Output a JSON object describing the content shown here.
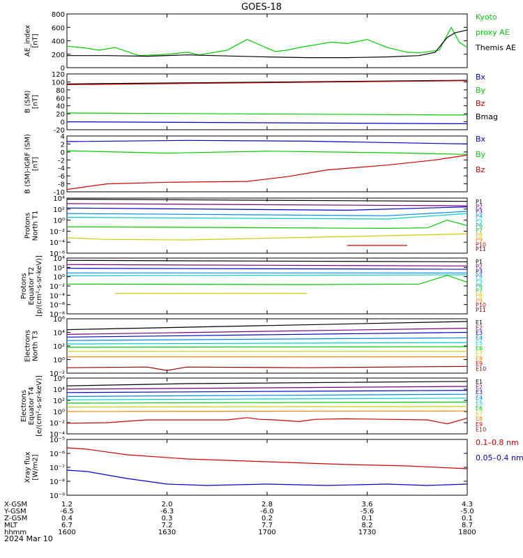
{
  "title": "GOES-18",
  "date_label": "2024 Mar 10",
  "chart_data": [
    {
      "type": "line",
      "panel": "ae",
      "ylabel": [
        "AE_index",
        "[nT]"
      ],
      "ylim": [
        0,
        800
      ],
      "yticks": [
        "800",
        "600",
        "400",
        "200",
        "0"
      ],
      "ytick_values": [
        800,
        600,
        400,
        200,
        0
      ],
      "legend": [
        {
          "text": "Kyoto",
          "color": "#00cc00"
        },
        {
          "text": "proxy AE",
          "color": "#00cc00"
        },
        {
          "text": "Themis AE",
          "color": "#000000"
        }
      ],
      "series": [
        {
          "color": "#00cc00",
          "x": [
            0,
            5,
            8,
            12,
            18,
            22,
            25,
            30,
            33,
            40,
            45,
            52,
            55,
            58,
            62,
            66,
            70,
            75,
            80,
            85,
            88,
            93,
            96,
            98,
            100
          ],
          "values": [
            320,
            290,
            260,
            300,
            180,
            190,
            200,
            230,
            190,
            260,
            420,
            240,
            260,
            300,
            340,
            380,
            360,
            420,
            300,
            230,
            220,
            260,
            600,
            380,
            300
          ]
        },
        {
          "color": "#000000",
          "x": [
            0,
            10,
            20,
            30,
            40,
            50,
            60,
            70,
            80,
            88,
            92,
            95,
            97,
            100
          ],
          "values": [
            180,
            180,
            170,
            190,
            175,
            160,
            150,
            150,
            160,
            180,
            230,
            450,
            520,
            560
          ]
        }
      ]
    },
    {
      "type": "line",
      "panel": "b_sm",
      "ylabel": [
        "B (SM)",
        "[nT]"
      ],
      "ylim": [
        -20,
        120
      ],
      "yticks": [
        "120",
        "100",
        "80",
        "60",
        "40",
        "20",
        "0",
        "-20"
      ],
      "ytick_values": [
        120,
        100,
        80,
        60,
        40,
        20,
        0,
        -20
      ],
      "legend": [
        {
          "text": "Bx",
          "color": "#0000cc"
        },
        {
          "text": "By",
          "color": "#00cc00"
        },
        {
          "text": "Bz",
          "color": "#cc0000"
        },
        {
          "text": "Bmag",
          "color": "#000000"
        }
      ],
      "series": [
        {
          "color": "#000000",
          "x": [
            0,
            100
          ],
          "values": [
            95,
            104
          ]
        },
        {
          "color": "#cc0000",
          "x": [
            0,
            100
          ],
          "values": [
            93,
            103
          ]
        },
        {
          "color": "#00cc00",
          "x": [
            0,
            100
          ],
          "values": [
            22,
            17
          ]
        },
        {
          "color": "#0000cc",
          "x": [
            0,
            100
          ],
          "values": [
            0,
            -5
          ]
        }
      ]
    },
    {
      "type": "line",
      "panel": "b_igrf",
      "ylabel": [
        "B (SM)-IGRF (SM)",
        "[nT]"
      ],
      "ylim": [
        -10,
        4
      ],
      "yticks": [
        "4",
        "2",
        "0",
        "-2",
        "-4",
        "-6",
        "-8",
        "-10"
      ],
      "ytick_values": [
        4,
        2,
        0,
        -2,
        -4,
        -6,
        -8,
        -10
      ],
      "legend": [
        {
          "text": "Bx",
          "color": "#0000cc"
        },
        {
          "text": "By",
          "color": "#00cc00"
        },
        {
          "text": "Bz",
          "color": "#cc0000"
        }
      ],
      "series": [
        {
          "color": "#0000cc",
          "x": [
            0,
            30,
            60,
            100
          ],
          "values": [
            2.6,
            2.9,
            2.7,
            2.0
          ]
        },
        {
          "color": "#00cc00",
          "x": [
            0,
            25,
            50,
            80,
            100
          ],
          "values": [
            0.3,
            -0.3,
            0.2,
            -0.2,
            -0.6
          ]
        },
        {
          "color": "#cc0000",
          "x": [
            0,
            10,
            25,
            45,
            55,
            65,
            80,
            92,
            100
          ],
          "values": [
            -9.4,
            -8.0,
            -7.6,
            -7.4,
            -6.2,
            -4.5,
            -3.3,
            -2.0,
            -0.8
          ]
        }
      ]
    },
    {
      "type": "line",
      "panel": "protons_t1",
      "ylabel": [
        "Protons",
        "North T1"
      ],
      "ylog": true,
      "ylim": [
        -6,
        4
      ],
      "yticks": [
        "10⁴",
        "10²",
        "10⁰",
        "10⁻²",
        "10⁻⁴",
        "10⁻⁶"
      ],
      "ytick_values": [
        4,
        2,
        0,
        -2,
        -4,
        -6
      ],
      "legend": [
        {
          "text": "P1",
          "color": "#000000"
        },
        {
          "text": "P2",
          "color": "#7a007a"
        },
        {
          "text": "P3",
          "color": "#0000cc"
        },
        {
          "text": "P4",
          "color": "#0088ee"
        },
        {
          "text": "P5",
          "color": "#00cccc"
        },
        {
          "text": "P6",
          "color": "#00aa66"
        },
        {
          "text": "P7",
          "color": "#00cc00"
        },
        {
          "text": "P8",
          "color": "#cccc00"
        },
        {
          "text": "P9",
          "color": "#ff8800"
        },
        {
          "text": "P10",
          "color": "#cc0000"
        },
        {
          "text": "P11",
          "color": "#990000"
        }
      ],
      "series": [
        {
          "color": "#000000",
          "x": [
            0,
            100
          ],
          "values": [
            3.8,
            3.4
          ]
        },
        {
          "color": "#7a007a",
          "x": [
            0,
            100
          ],
          "values": [
            3.0,
            2.6
          ]
        },
        {
          "color": "#0000cc",
          "x": [
            0,
            70,
            100
          ],
          "values": [
            2.2,
            1.8,
            2.4
          ]
        },
        {
          "color": "#0088ee",
          "x": [
            0,
            80,
            100
          ],
          "values": [
            1.2,
            0.8,
            1.6
          ]
        },
        {
          "color": "#00cccc",
          "x": [
            0,
            80,
            100
          ],
          "values": [
            0.5,
            0.2,
            1.2
          ]
        },
        {
          "color": "#00cc00",
          "x": [
            0,
            80,
            90,
            95,
            100
          ],
          "values": [
            -1.2,
            -1.5,
            -1.4,
            0.0,
            -1.0
          ]
        },
        {
          "color": "#cccc00",
          "x": [
            0,
            10,
            30,
            100
          ],
          "values": [
            -3.2,
            -3.5,
            -3.6,
            -2.5
          ]
        },
        {
          "color": "#cc0000",
          "x": [
            70,
            85
          ],
          "values": [
            -4.6,
            -4.6
          ]
        }
      ]
    },
    {
      "type": "line",
      "panel": "protons_t2",
      "ylabel": [
        "Protons",
        "Equator T2",
        "[p/(cm²-s-sr-keV)]"
      ],
      "ylog": true,
      "ylim": [
        -8,
        4
      ],
      "yticks": [
        "10⁴",
        "10²",
        "10⁰",
        "10⁻²",
        "10⁻⁴",
        "10⁻⁶",
        "10⁻⁸"
      ],
      "ytick_values": [
        4,
        2,
        0,
        -2,
        -4,
        -6,
        -8
      ],
      "legend": [
        {
          "text": "P1",
          "color": "#000000"
        },
        {
          "text": "P2",
          "color": "#7a007a"
        },
        {
          "text": "P3",
          "color": "#0000cc"
        },
        {
          "text": "P4",
          "color": "#0088ee"
        },
        {
          "text": "P5",
          "color": "#00cccc"
        },
        {
          "text": "P6",
          "color": "#00aa66"
        },
        {
          "text": "P7",
          "color": "#00cc00"
        },
        {
          "text": "P8",
          "color": "#cccc00"
        },
        {
          "text": "P9",
          "color": "#ff8800"
        },
        {
          "text": "P10",
          "color": "#cc0000"
        },
        {
          "text": "P11",
          "color": "#990000"
        }
      ],
      "series": [
        {
          "color": "#000000",
          "x": [
            0,
            100
          ],
          "values": [
            3.5,
            3.2
          ]
        },
        {
          "color": "#7a007a",
          "x": [
            0,
            100
          ],
          "values": [
            2.6,
            2.3
          ]
        },
        {
          "color": "#0000cc",
          "x": [
            0,
            100
          ],
          "values": [
            1.8,
            1.6
          ]
        },
        {
          "color": "#0088ee",
          "x": [
            0,
            100
          ],
          "values": [
            0.8,
            0.8
          ]
        },
        {
          "color": "#00cccc",
          "x": [
            0,
            100
          ],
          "values": [
            0.2,
            0.4
          ]
        },
        {
          "color": "#00cc00",
          "x": [
            0,
            60,
            88,
            95,
            100
          ],
          "values": [
            -1.6,
            -1.7,
            -1.6,
            0.3,
            -1.2
          ]
        },
        {
          "color": "#cccc00",
          "x": [
            12,
            60
          ],
          "values": [
            -3.6,
            -3.6
          ]
        }
      ]
    },
    {
      "type": "line",
      "panel": "electrons_t3",
      "ylabel": [
        "Electrons",
        "North T3"
      ],
      "ylog": true,
      "ylim": [
        -2,
        6
      ],
      "yticks": [
        "10⁶",
        "10⁴",
        "10²",
        "10⁰",
        "10⁻²"
      ],
      "ytick_values": [
        6,
        4,
        2,
        0,
        -2
      ],
      "legend": [
        {
          "text": "E1",
          "color": "#000000"
        },
        {
          "text": "E2",
          "color": "#7a007a"
        },
        {
          "text": "E3",
          "color": "#0000cc"
        },
        {
          "text": "E4",
          "color": "#0088ee"
        },
        {
          "text": "E5",
          "color": "#00cccc"
        },
        {
          "text": "E6",
          "color": "#00cc00"
        },
        {
          "text": "E7",
          "color": "#cccc00"
        },
        {
          "text": "E8",
          "color": "#ff8800"
        },
        {
          "text": "E9",
          "color": "#cc0000"
        },
        {
          "text": "E10",
          "color": "#990000"
        }
      ],
      "series": [
        {
          "color": "#000000",
          "x": [
            0,
            100
          ],
          "values": [
            4.4,
            5.6
          ]
        },
        {
          "color": "#7a007a",
          "x": [
            0,
            100
          ],
          "values": [
            3.7,
            4.6
          ]
        },
        {
          "color": "#0000cc",
          "x": [
            0,
            100
          ],
          "values": [
            3.3,
            4.0
          ]
        },
        {
          "color": "#0088ee",
          "x": [
            0,
            100
          ],
          "values": [
            2.8,
            3.2
          ]
        },
        {
          "color": "#00cccc",
          "x": [
            0,
            100
          ],
          "values": [
            2.3,
            2.5
          ]
        },
        {
          "color": "#00cc00",
          "x": [
            0,
            100
          ],
          "values": [
            1.8,
            1.9
          ]
        },
        {
          "color": "#cccc00",
          "x": [
            0,
            100
          ],
          "values": [
            1.2,
            1.2
          ]
        },
        {
          "color": "#ff8800",
          "x": [
            0,
            100
          ],
          "values": [
            0.4,
            0.4
          ]
        },
        {
          "color": "#990000",
          "x": [
            0,
            20,
            25,
            30,
            60,
            100
          ],
          "values": [
            -1.2,
            -1.1,
            -1.6,
            -1.1,
            -1.2,
            -1.0
          ]
        }
      ]
    },
    {
      "type": "line",
      "panel": "electrons_t4",
      "ylabel": [
        "Electrons",
        "Equator T4",
        "[e/(cm²-s-sr-keV)]"
      ],
      "ylog": true,
      "ylim": [
        -4,
        6
      ],
      "yticks": [
        "10⁶",
        "10⁴",
        "10²",
        "10⁰",
        "10⁻²",
        "10⁻⁴"
      ],
      "ytick_values": [
        6,
        4,
        2,
        0,
        -2,
        -4
      ],
      "legend": [
        {
          "text": "E1",
          "color": "#000000"
        },
        {
          "text": "E2",
          "color": "#7a007a"
        },
        {
          "text": "E3",
          "color": "#0000cc"
        },
        {
          "text": "E4",
          "color": "#0088ee"
        },
        {
          "text": "E5",
          "color": "#00cccc"
        },
        {
          "text": "E6",
          "color": "#00cc00"
        },
        {
          "text": "E7",
          "color": "#cccc00"
        },
        {
          "text": "E8",
          "color": "#ff8800"
        },
        {
          "text": "E9",
          "color": "#cc0000"
        },
        {
          "text": "E10",
          "color": "#990000"
        }
      ],
      "series": [
        {
          "color": "#000000",
          "x": [
            0,
            30,
            100
          ],
          "values": [
            4.6,
            5.0,
            5.4
          ]
        },
        {
          "color": "#7a007a",
          "x": [
            0,
            100
          ],
          "values": [
            4.0,
            4.5
          ]
        },
        {
          "color": "#0000cc",
          "x": [
            0,
            100
          ],
          "values": [
            3.4,
            3.8
          ]
        },
        {
          "color": "#0088ee",
          "x": [
            0,
            100
          ],
          "values": [
            2.7,
            3.1
          ]
        },
        {
          "color": "#00cccc",
          "x": [
            0,
            100
          ],
          "values": [
            2.1,
            2.4
          ]
        },
        {
          "color": "#00cc00",
          "x": [
            0,
            100
          ],
          "values": [
            1.5,
            1.7
          ]
        },
        {
          "color": "#cccc00",
          "x": [
            0,
            100
          ],
          "values": [
            0.8,
            0.9
          ]
        },
        {
          "color": "#ff8800",
          "x": [
            0,
            100
          ],
          "values": [
            0.0,
            0.1
          ]
        },
        {
          "color": "#cc0000",
          "x": [
            0,
            10,
            20,
            40,
            45,
            48,
            52,
            58,
            62,
            70,
            80,
            90,
            95,
            100
          ],
          "values": [
            -2.1,
            -2.0,
            -1.5,
            -1.5,
            -1.1,
            -1.4,
            -1.5,
            -1.8,
            -1.4,
            -1.3,
            -1.4,
            -1.5,
            -2.2,
            -1.2
          ]
        }
      ]
    },
    {
      "type": "line",
      "panel": "xray",
      "ylabel": [
        "Xray flux",
        "[W/m2]"
      ],
      "ylog": true,
      "ylim": [
        -9,
        -5
      ],
      "yticks": [
        "10⁻⁵",
        "10⁻⁶",
        "10⁻⁷",
        "10⁻⁸",
        "10⁻⁹"
      ],
      "ytick_values": [
        -5,
        -6,
        -7,
        -8,
        -9
      ],
      "legend": [
        {
          "text": "0.1–0.8 nm",
          "color": "#cc0000"
        },
        {
          "text": "0.05–0.4 nm",
          "color": "#0000cc"
        }
      ],
      "series": [
        {
          "color": "#cc0000",
          "x": [
            0,
            5,
            15,
            30,
            50,
            70,
            85,
            100
          ],
          "values": [
            -5.6,
            -5.7,
            -6.1,
            -6.4,
            -6.6,
            -6.8,
            -6.9,
            -7.1
          ]
        },
        {
          "color": "#0000cc",
          "x": [
            0,
            5,
            15,
            25,
            35,
            50,
            65,
            80,
            90,
            100
          ],
          "values": [
            -7.2,
            -7.3,
            -7.8,
            -8.2,
            -8.3,
            -8.2,
            -8.3,
            -8.2,
            -8.3,
            -8.2
          ]
        }
      ]
    }
  ],
  "x_axis_rows": [
    {
      "label": "X-GSM",
      "values": [
        "1.2",
        "2.0",
        "2.8",
        "3.6",
        "4.3"
      ]
    },
    {
      "label": "Y-GSM",
      "values": [
        "-6.5",
        "-6.3",
        "-6.0",
        "-5.6",
        "-5.0"
      ]
    },
    {
      "label": "Z-GSM",
      "values": [
        "0.4",
        "0.3",
        "0.2",
        "0.1",
        "0.1"
      ]
    },
    {
      "label": "MLT",
      "values": [
        "6.7",
        "7.2",
        "7.7",
        "8.2",
        "8.7"
      ]
    },
    {
      "label": "hhmm",
      "values": [
        "1600",
        "1630",
        "1700",
        "1730",
        "1800"
      ]
    }
  ],
  "x_tick_values": [
    0,
    25,
    50,
    75,
    100
  ]
}
